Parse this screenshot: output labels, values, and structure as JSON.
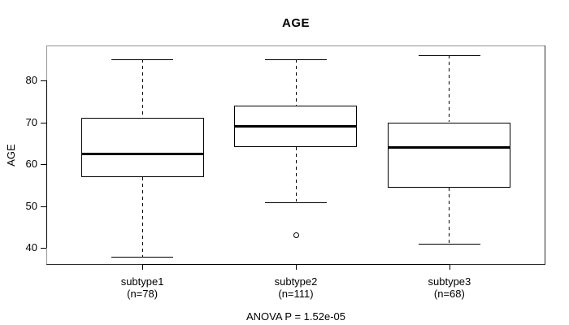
{
  "chart_data": {
    "type": "boxplot",
    "title": "AGE",
    "ylabel": "AGE",
    "annotation": "ANOVA P = 1.52e-05",
    "ylim": [
      36.2,
      88.1
    ],
    "yticks": [
      40,
      50,
      60,
      70,
      80
    ],
    "x_positions": [
      1,
      2,
      3
    ],
    "x_domain": [
      0.38,
      3.62
    ],
    "box_width": 0.8,
    "cap_width": 0.4,
    "grid": false,
    "legend": "none",
    "groups": [
      {
        "label": "subtype1",
        "sublabel": "(n=78)",
        "n": 78,
        "whisker_low": 38,
        "q1": 57,
        "median": 62.5,
        "q3": 71,
        "whisker_high": 85,
        "outliers": []
      },
      {
        "label": "subtype2",
        "sublabel": "(n=111)",
        "n": 111,
        "whisker_low": 51,
        "q1": 64,
        "median": 69,
        "q3": 74,
        "whisker_high": 85,
        "outliers": [
          43
        ]
      },
      {
        "label": "subtype3",
        "sublabel": "(n=68)",
        "n": 68,
        "whisker_low": 41,
        "q1": 54.5,
        "median": 64,
        "q3": 70,
        "whisker_high": 86,
        "outliers": []
      }
    ]
  },
  "colors": {
    "line": "#000000",
    "text": "#000000",
    "background": "#ffffff",
    "frame_light": "#949494",
    "frame_dark": "#2b2b2b"
  }
}
